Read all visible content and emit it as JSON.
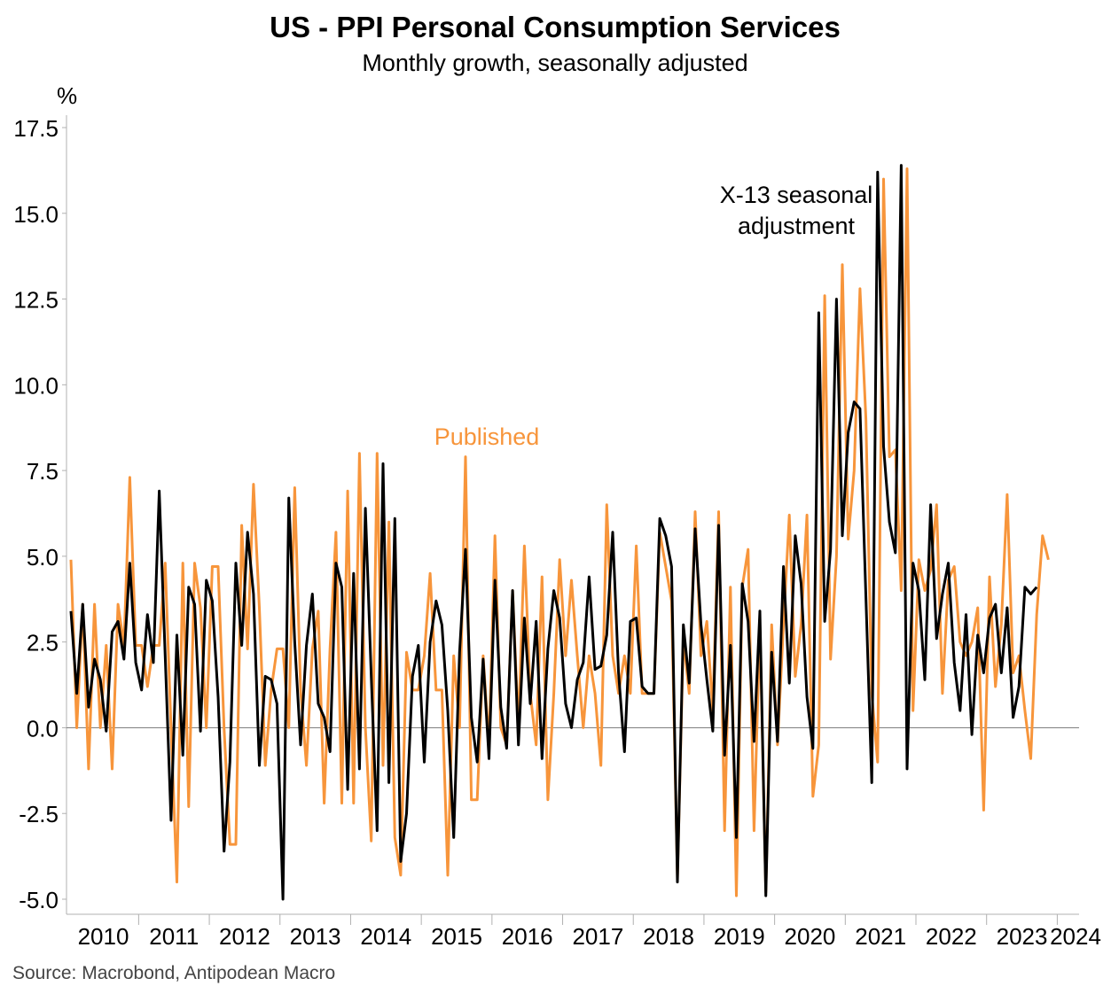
{
  "chart_data": {
    "type": "line",
    "title": "US - PPI Personal Consumption Services",
    "subtitle": "Monthly growth, seasonally adjusted",
    "ylabel": "%",
    "source": "Source: Macrobond, Antipodean Macro",
    "ylim": [
      -5.0,
      17.5
    ],
    "yticks": [
      "17.5",
      "15.0",
      "12.5",
      "10.0",
      "7.5",
      "5.0",
      "2.5",
      "0.0",
      "-2.5",
      "-5.0"
    ],
    "x_start": "2010-01",
    "xlim": [
      "2010-01",
      "2024-03"
    ],
    "xticks": [
      "2010",
      "2011",
      "2012",
      "2013",
      "2014",
      "2015",
      "2016",
      "2017",
      "2018",
      "2019",
      "2020",
      "2021",
      "2022",
      "2023",
      "2024"
    ],
    "grid": false,
    "colors": {
      "published": "#f7953b",
      "x13": "#000000",
      "zero_line": "#808080",
      "axis": "#b0b0b0"
    },
    "series": [
      {
        "name": "Published",
        "values": [
          4.9,
          0.0,
          3.6,
          -1.2,
          3.6,
          0.0,
          2.4,
          -1.2,
          3.6,
          2.4,
          7.3,
          2.4,
          2.4,
          1.2,
          2.4,
          2.4,
          4.8,
          0.0,
          -4.5,
          4.8,
          -2.3,
          4.8,
          3.5,
          0.0,
          4.7,
          4.7,
          0.0,
          -3.4,
          -3.4,
          5.9,
          2.3,
          7.1,
          3.5,
          -1.1,
          1.1,
          2.3,
          2.3,
          0.0,
          7.0,
          1.1,
          -1.1,
          2.3,
          3.4,
          -2.2,
          2.3,
          5.7,
          -2.2,
          6.9,
          -2.2,
          8.0,
          0.0,
          -3.3,
          8.0,
          -1.1,
          6.0,
          -3.2,
          -4.3,
          2.2,
          1.1,
          1.1,
          2.1,
          4.5,
          1.1,
          1.1,
          -4.3,
          2.1,
          0.0,
          7.9,
          -2.1,
          -2.1,
          2.1,
          -0.5,
          5.6,
          0.0,
          -0.5,
          4.0,
          0.0,
          5.3,
          1.0,
          -0.5,
          4.4,
          -2.1,
          1.0,
          4.9,
          2.1,
          4.3,
          2.1,
          0.0,
          2.1,
          1.0,
          -1.1,
          6.5,
          2.1,
          1.0,
          2.1,
          1.0,
          5.3,
          1.0,
          1.0,
          1.0,
          5.7,
          4.7,
          3.7,
          -4.4,
          2.6,
          1.0,
          6.3,
          2.1,
          3.1,
          0.5,
          6.3,
          -3.0,
          4.1,
          -4.9,
          4.1,
          5.2,
          -3.0,
          3.0,
          -4.8,
          3.0,
          -0.5,
          3.0,
          6.2,
          1.5,
          3.0,
          6.2,
          -2.0,
          -0.5,
          12.6,
          2.0,
          5.0,
          13.5,
          5.5,
          7.5,
          12.8,
          9.0,
          1.0,
          -1.0,
          16.0,
          7.9,
          8.1,
          4.0,
          16.3,
          0.5,
          4.9,
          4.0,
          4.6,
          6.5,
          1.0,
          4.3,
          4.7,
          2.5,
          2.1,
          2.5,
          3.5,
          -2.4,
          4.4,
          1.2,
          3.0,
          6.8,
          1.6,
          2.1,
          0.5,
          -0.9,
          3.3,
          5.6,
          4.9
        ]
      },
      {
        "name": "X-13 seasonal adjustment",
        "values": [
          3.4,
          1.0,
          3.6,
          0.6,
          2.0,
          1.4,
          -0.1,
          2.8,
          3.1,
          2.0,
          4.8,
          1.9,
          1.1,
          3.3,
          1.9,
          6.9,
          2.1,
          -2.7,
          2.7,
          -0.8,
          4.1,
          3.6,
          -0.1,
          4.3,
          3.7,
          0.9,
          -3.6,
          -1.0,
          4.8,
          2.4,
          5.7,
          3.9,
          -1.1,
          1.5,
          1.4,
          0.7,
          -5.0,
          6.7,
          2.5,
          -0.5,
          2.4,
          3.9,
          0.7,
          0.3,
          -0.7,
          4.8,
          4.1,
          -1.8,
          4.5,
          -1.2,
          6.4,
          1.5,
          -3.0,
          7.7,
          -1.6,
          6.1,
          -3.9,
          -2.5,
          1.5,
          2.4,
          -1.0,
          2.5,
          3.7,
          3.0,
          0.5,
          -3.2,
          2.2,
          5.2,
          0.3,
          -1.0,
          2.0,
          -0.9,
          4.3,
          0.6,
          -0.6,
          4.0,
          -0.5,
          3.2,
          0.7,
          3.1,
          -0.9,
          2.3,
          4.0,
          3.2,
          0.7,
          0.0,
          1.4,
          1.9,
          4.4,
          1.7,
          1.8,
          2.7,
          5.7,
          1.6,
          -0.7,
          3.1,
          3.2,
          1.2,
          1.0,
          1.0,
          6.1,
          5.6,
          4.7,
          -4.5,
          3.0,
          1.3,
          5.8,
          3.0,
          1.4,
          -0.1,
          5.9,
          -0.8,
          2.4,
          -3.2,
          4.2,
          3.1,
          -0.4,
          3.4,
          -4.9,
          2.2,
          -0.4,
          4.7,
          1.3,
          5.6,
          4.2,
          0.9,
          -0.6,
          12.1,
          3.1,
          5.2,
          12.5,
          5.6,
          8.6,
          9.5,
          9.3,
          3.8,
          -1.6,
          16.2,
          8.2,
          6.0,
          5.1,
          16.4,
          -1.2,
          4.8,
          4.0,
          1.4,
          6.5,
          2.6,
          3.9,
          4.8,
          1.9,
          0.5,
          3.3,
          -0.2,
          2.7,
          1.6,
          3.2,
          3.6,
          1.6,
          3.5,
          0.3,
          1.2,
          4.1,
          3.9,
          4.1
        ]
      }
    ],
    "annotations": [
      {
        "text": "Published",
        "color": "#f7953b"
      },
      {
        "lines": [
          "X-13 seasonal",
          "adjustment"
        ],
        "color": "#000000"
      }
    ]
  }
}
